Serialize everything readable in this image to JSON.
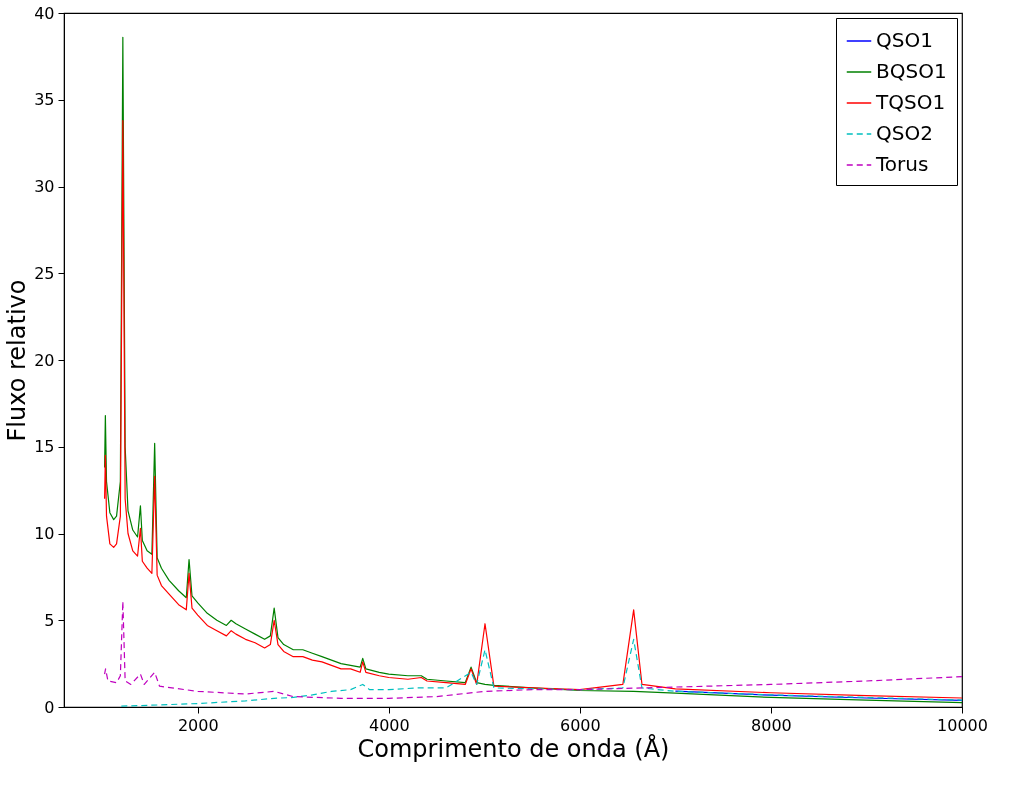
{
  "chart_data": {
    "type": "line",
    "xlabel": "Comprimento de onda (Å)",
    "ylabel": "Fluxo relativo",
    "xlim": [
      600,
      10000
    ],
    "xticks": [
      2000,
      4000,
      6000,
      8000,
      10000
    ],
    "ylim": [
      0,
      40
    ],
    "yticks": [
      0,
      5,
      10,
      15,
      20,
      25,
      30,
      35,
      40
    ],
    "grid": false,
    "legend": "top right",
    "marker": "none",
    "series": [
      {
        "name": "QSO1",
        "color": "#0000ff",
        "line_style": "solid",
        "x": [
          7000,
          8000,
          9000,
          10000
        ],
        "values": [
          0.92,
          0.68,
          0.52,
          0.38
        ]
      },
      {
        "name": "BQSO1",
        "color": "#008000",
        "line_style": "solid",
        "x": [
          1025,
          1033,
          1045,
          1080,
          1120,
          1150,
          1190,
          1216,
          1240,
          1270,
          1320,
          1370,
          1400,
          1420,
          1470,
          1520,
          1549,
          1575,
          1620,
          1700,
          1800,
          1880,
          1909,
          1940,
          2000,
          2100,
          2200,
          2300,
          2350,
          2400,
          2500,
          2600,
          2700,
          2760,
          2800,
          2840,
          2900,
          3000,
          3100,
          3200,
          3300,
          3400,
          3500,
          3600,
          3700,
          3727,
          3760,
          3900,
          4000,
          4200,
          4340,
          4400,
          4600,
          4800,
          4861,
          4920,
          5007,
          5100,
          5500,
          6000,
          6563,
          7000,
          8000,
          9000,
          10000
        ],
        "values": [
          13.8,
          16.8,
          13.0,
          11.2,
          10.8,
          11.0,
          13,
          38.6,
          15,
          11.3,
          10.2,
          9.8,
          11.6,
          9.6,
          9.0,
          8.8,
          15.2,
          8.6,
          8.0,
          7.3,
          6.7,
          6.3,
          8.5,
          6.4,
          6.0,
          5.4,
          5.0,
          4.7,
          5.0,
          4.8,
          4.5,
          4.2,
          3.9,
          4.1,
          5.7,
          4.0,
          3.6,
          3.3,
          3.3,
          3.1,
          2.9,
          2.7,
          2.5,
          2.4,
          2.3,
          2.8,
          2.2,
          2.0,
          1.9,
          1.8,
          1.8,
          1.6,
          1.5,
          1.4,
          2.3,
          1.4,
          1.3,
          1.25,
          1.1,
          0.95,
          0.9,
          0.8,
          0.55,
          0.4,
          0.25
        ]
      },
      {
        "name": "TQSO1",
        "color": "#ff0000",
        "line_style": "solid",
        "x": [
          1025,
          1033,
          1045,
          1080,
          1120,
          1150,
          1190,
          1216,
          1240,
          1270,
          1320,
          1370,
          1400,
          1420,
          1470,
          1520,
          1549,
          1575,
          1620,
          1700,
          1800,
          1880,
          1909,
          1940,
          2000,
          2100,
          2200,
          2300,
          2350,
          2400,
          2500,
          2600,
          2700,
          2760,
          2800,
          2840,
          2900,
          3000,
          3100,
          3200,
          3300,
          3400,
          3500,
          3600,
          3700,
          3727,
          3760,
          3900,
          4000,
          4200,
          4340,
          4400,
          4600,
          4800,
          4861,
          4920,
          5007,
          5100,
          5500,
          6000,
          6450,
          6563,
          6650,
          7000,
          8000,
          9000,
          10000
        ],
        "values": [
          12.0,
          14.5,
          11.0,
          9.4,
          9.2,
          9.4,
          11,
          33.8,
          12,
          10.0,
          9.0,
          8.7,
          10.3,
          8.4,
          8.0,
          7.7,
          13.3,
          7.6,
          7.0,
          6.5,
          5.9,
          5.6,
          7.7,
          5.7,
          5.3,
          4.7,
          4.4,
          4.1,
          4.4,
          4.2,
          3.9,
          3.7,
          3.4,
          3.6,
          5.0,
          3.6,
          3.2,
          2.9,
          2.9,
          2.7,
          2.6,
          2.4,
          2.2,
          2.2,
          2.0,
          2.6,
          2.0,
          1.8,
          1.7,
          1.6,
          1.7,
          1.5,
          1.4,
          1.3,
          2.2,
          1.3,
          4.8,
          1.2,
          1.1,
          1.0,
          1.3,
          5.6,
          1.3,
          1.05,
          0.82,
          0.66,
          0.52
        ]
      },
      {
        "name": "QSO2",
        "color": "#00bfbf",
        "line_style": "dashed",
        "x": [
          1200,
          1500,
          2000,
          2500,
          2800,
          3000,
          3200,
          3400,
          3600,
          3727,
          3800,
          4000,
          4300,
          4600,
          4861,
          4920,
          5007,
          5100,
          5500,
          6000,
          6450,
          6563,
          6650,
          7000,
          8000,
          9000,
          10000
        ],
        "values": [
          0.05,
          0.1,
          0.2,
          0.35,
          0.5,
          0.55,
          0.7,
          0.9,
          1.0,
          1.3,
          1.0,
          1.0,
          1.1,
          1.1,
          2.0,
          1.3,
          3.3,
          1.1,
          1.05,
          1.0,
          1.1,
          3.9,
          1.1,
          0.9,
          0.7,
          0.55,
          0.4
        ]
      },
      {
        "name": "Torus",
        "color": "#bf00bf",
        "line_style": "dashed",
        "x": [
          1025,
          1035,
          1060,
          1150,
          1190,
          1216,
          1240,
          1300,
          1400,
          1440,
          1549,
          1600,
          2000,
          2500,
          2800,
          3000,
          3500,
          4000,
          4500,
          5000,
          5500,
          6000,
          7000,
          8000,
          9000,
          10000
        ],
        "values": [
          1.9,
          2.2,
          1.5,
          1.4,
          1.8,
          6.1,
          1.5,
          1.3,
          1.9,
          1.3,
          2.0,
          1.2,
          0.9,
          0.75,
          0.9,
          0.6,
          0.5,
          0.5,
          0.6,
          0.9,
          1.0,
          1.0,
          1.15,
          1.3,
          1.5,
          1.75
        ]
      }
    ]
  }
}
